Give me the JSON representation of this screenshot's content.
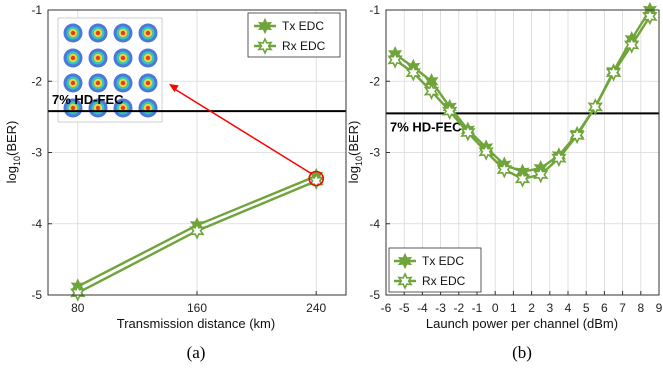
{
  "chart_data": [
    {
      "type": "line",
      "caption": "(a)",
      "xlabel": "Transmission distance (km)",
      "ylabel": "log10(BER)",
      "ylabel_base": "log",
      "ylabel_sub": "10",
      "ylabel_rest": "(BER)",
      "xlim": [
        60,
        260
      ],
      "ylim": [
        -5,
        -1
      ],
      "xticks": [
        80,
        160,
        240
      ],
      "yticks": [
        -5,
        -4,
        -3,
        -2,
        -1
      ],
      "grid": true,
      "legend": "top-right",
      "threshold": {
        "label": "7% HD-FEC",
        "y": -2.42
      },
      "annotation": "inset constellation (16-QAM) for the 240 km point, highlighted by a red circle and arrow",
      "series": [
        {
          "name": "Tx EDC",
          "marker": "filled-star",
          "x": [
            80,
            160,
            240
          ],
          "y": [
            -4.88,
            -4.02,
            -3.33
          ]
        },
        {
          "name": "Rx EDC",
          "marker": "open-star",
          "x": [
            80,
            160,
            240
          ],
          "y": [
            -4.97,
            -4.1,
            -3.4
          ]
        }
      ]
    },
    {
      "type": "line",
      "caption": "(b)",
      "xlabel": "Launch power per channel (dBm)",
      "ylabel": "log10(BER)",
      "ylabel_base": "log",
      "ylabel_sub": "10",
      "ylabel_rest": "(BER)",
      "xlim": [
        -6,
        9
      ],
      "ylim": [
        -5,
        -1
      ],
      "xticks": [
        -6,
        -5,
        -4,
        -3,
        -2,
        -1,
        0,
        1,
        2,
        3,
        4,
        5,
        6,
        7,
        8,
        9
      ],
      "yticks": [
        -5,
        -4,
        -3,
        -2,
        -1
      ],
      "grid": true,
      "legend": "bottom-left",
      "threshold": {
        "label": "7% HD-FEC",
        "y": -2.45
      },
      "series": [
        {
          "name": "Tx EDC",
          "x": [
            -5.5,
            -4.5,
            -3.5,
            -2.5,
            -1.5,
            -0.5,
            0.5,
            1.5,
            2.5,
            3.5,
            4.5,
            5.5,
            6.5,
            7.5,
            8.5
          ],
          "y": [
            -1.62,
            -1.8,
            -2.0,
            -2.36,
            -2.68,
            -2.93,
            -3.17,
            -3.27,
            -3.22,
            -3.04,
            -2.74,
            -2.36,
            -1.86,
            -1.41,
            -1.0
          ]
        },
        {
          "name": "Rx EDC",
          "x": [
            -5.5,
            -4.5,
            -3.5,
            -2.5,
            -1.5,
            -0.5,
            0.5,
            1.5,
            2.5,
            3.5,
            4.5,
            5.5,
            6.5,
            7.5,
            8.5
          ],
          "y": [
            -1.7,
            -1.88,
            -2.14,
            -2.42,
            -2.72,
            -2.99,
            -3.24,
            -3.37,
            -3.31,
            -3.08,
            -2.76,
            -2.36,
            -1.88,
            -1.49,
            -1.09
          ]
        }
      ]
    }
  ],
  "colors": {
    "series": "#6fa43b",
    "threshold": "#000000",
    "arrow": "#ff0000",
    "grid": "#d9d9d9"
  }
}
